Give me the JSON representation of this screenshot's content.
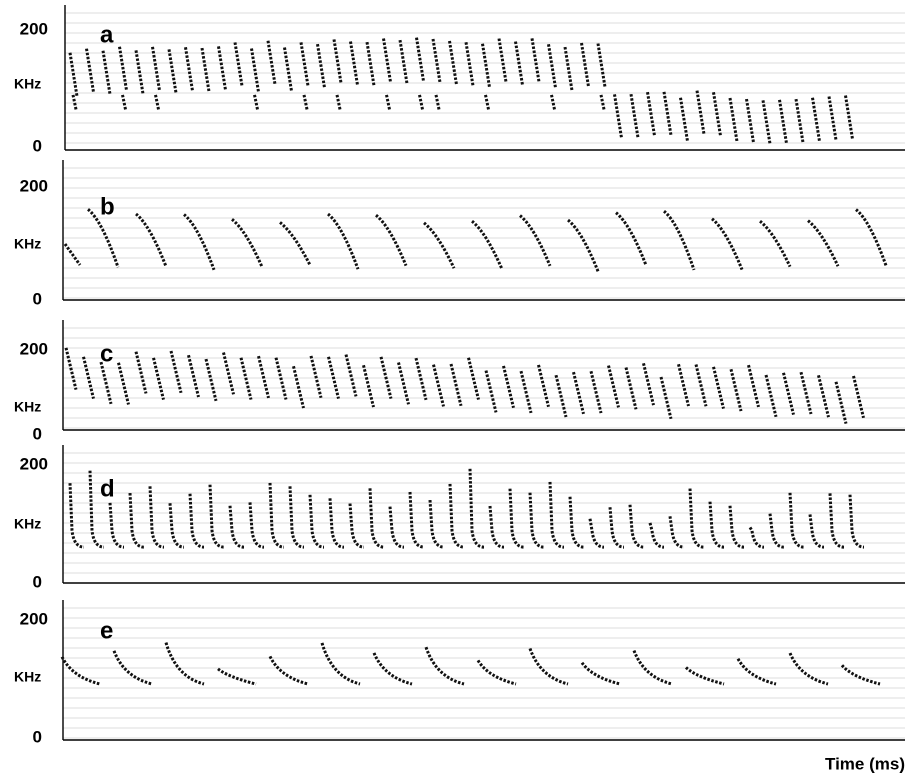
{
  "panels": [
    {
      "label": "a",
      "y_top": "200",
      "y_unit": "KHz",
      "y_bottom": "0"
    },
    {
      "label": "b",
      "y_top": "200",
      "y_unit": "KHz",
      "y_bottom": "0"
    },
    {
      "label": "c",
      "y_top": "200",
      "y_unit": "KHz",
      "y_bottom": "0"
    },
    {
      "label": "d",
      "y_top": "200",
      "y_unit": "KHz",
      "y_bottom": "0"
    },
    {
      "label": "e",
      "y_top": "200",
      "y_unit": "KHz",
      "y_bottom": "0"
    }
  ],
  "x_label": "Time (ms)"
}
